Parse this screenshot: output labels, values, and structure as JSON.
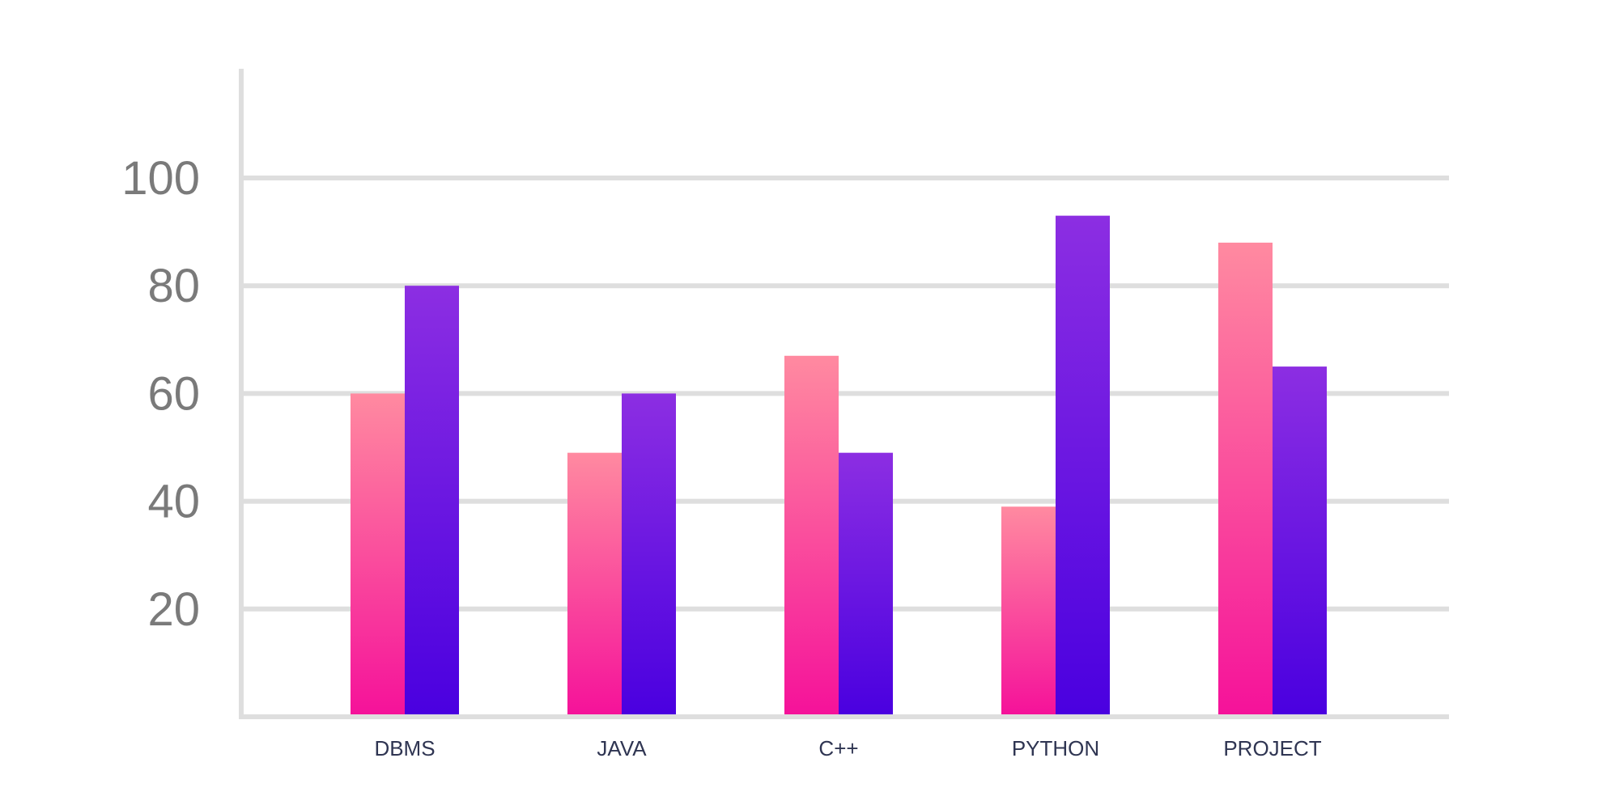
{
  "chart_data": {
    "type": "bar",
    "title": "",
    "xlabel": "",
    "ylabel": "",
    "categories": [
      "DBMS",
      "JAVA",
      "C++",
      "PYTHON",
      "PROJECT"
    ],
    "series": [
      {
        "values": [
          60,
          49,
          67,
          39,
          88
        ],
        "color_top": "#ff8aa0",
        "color_bottom": "#f5129a"
      },
      {
        "values": [
          80,
          60,
          49,
          93,
          65
        ],
        "color_top": "#8c2ee2",
        "color_bottom": "#4a00e0"
      }
    ],
    "yticks": [
      20,
      40,
      60,
      80,
      100
    ],
    "ylim": [
      0,
      100
    ],
    "grid": true,
    "legend": "none"
  }
}
